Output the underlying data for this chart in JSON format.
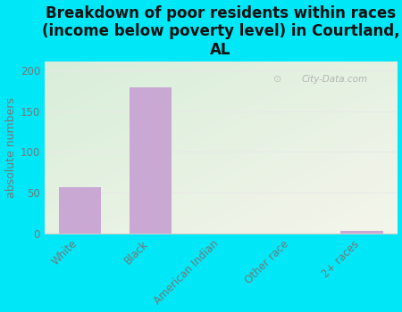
{
  "title": "Breakdown of poor residents within races\n(income below poverty level) in Courtland,\nAL",
  "categories": [
    "White",
    "Black",
    "American Indian",
    "Other race",
    "2+ races"
  ],
  "values": [
    57,
    179,
    0,
    0,
    3
  ],
  "bar_color": "#c9a8d4",
  "ylabel": "absolute numbers",
  "ylim": [
    0,
    210
  ],
  "yticks": [
    0,
    50,
    100,
    150,
    200
  ],
  "bg_outer": "#00e8f8",
  "bg_plot_color1": "#d8eeda",
  "bg_plot_color2": "#f5f5eb",
  "title_fontsize": 12,
  "label_fontsize": 9,
  "tick_fontsize": 8.5,
  "watermark": "City-Data.com",
  "grid_color": "#e8e8e8",
  "spine_color": "#cccccc",
  "text_color": "#777777"
}
